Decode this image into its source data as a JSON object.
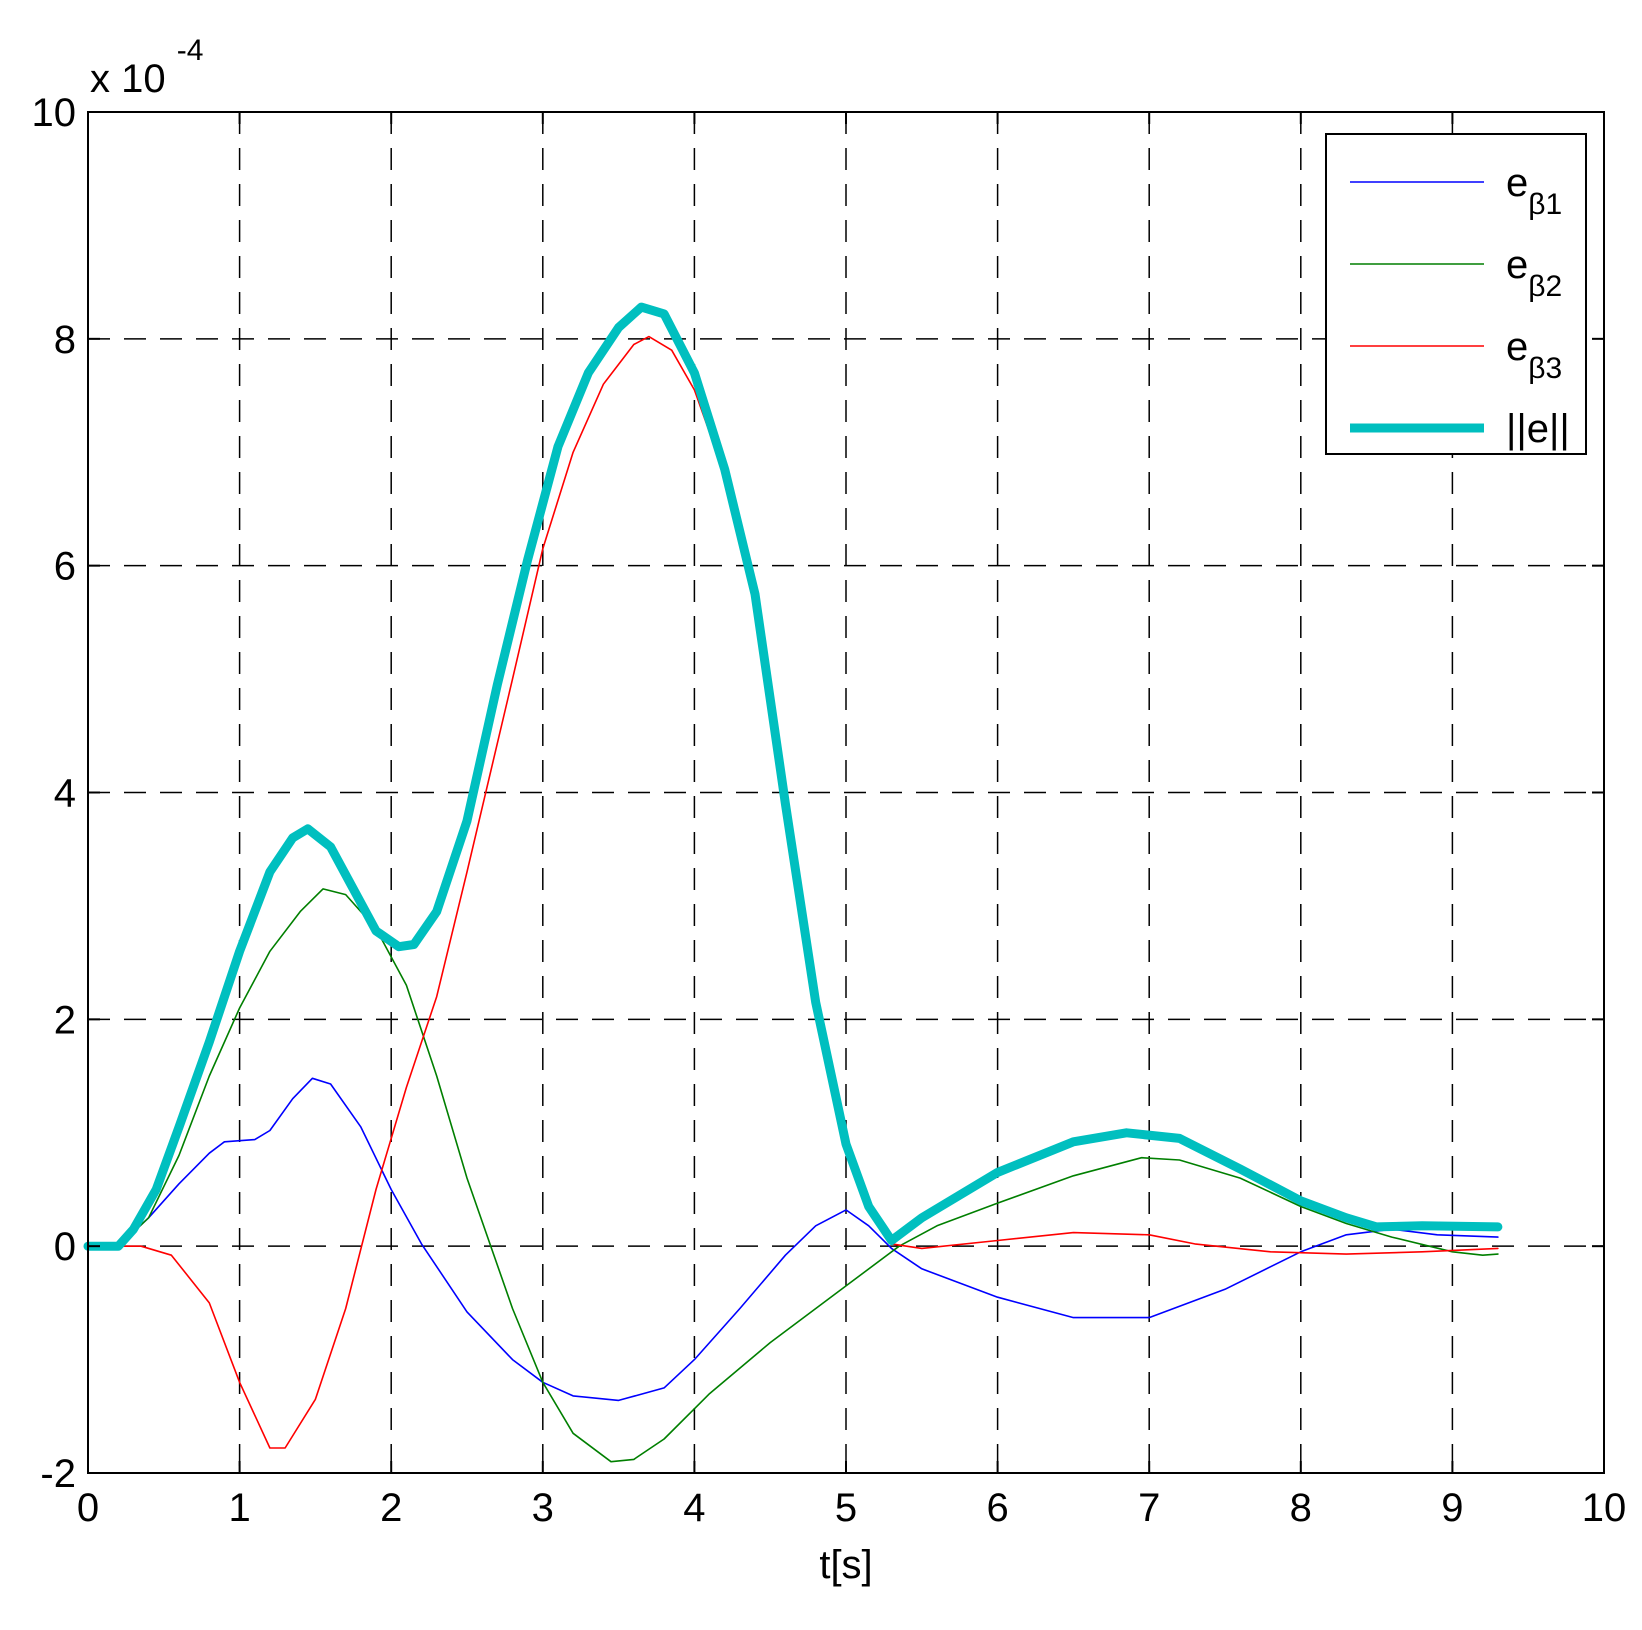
{
  "chart_data": {
    "type": "line",
    "xlabel": "t[s]",
    "ylabel": "",
    "y_multiplier": "x 10",
    "y_exponent": "-4",
    "xlim": [
      0,
      10
    ],
    "ylim": [
      -2,
      10
    ],
    "xticks": [
      "0",
      "1",
      "2",
      "3",
      "4",
      "5",
      "6",
      "7",
      "8",
      "9",
      "10"
    ],
    "yticks": [
      "-2",
      "0",
      "2",
      "4",
      "6",
      "8",
      "10"
    ],
    "grid": true,
    "legend_position": "top-right",
    "series": [
      {
        "name_main": "e",
        "name_sub": "β1",
        "color": "#0000ff",
        "points": [
          [
            0,
            0
          ],
          [
            0.2,
            0
          ],
          [
            0.4,
            0.25
          ],
          [
            0.6,
            0.55
          ],
          [
            0.8,
            0.82
          ],
          [
            0.9,
            0.92
          ],
          [
            1.1,
            0.94
          ],
          [
            1.2,
            1.02
          ],
          [
            1.35,
            1.3
          ],
          [
            1.48,
            1.48
          ],
          [
            1.6,
            1.43
          ],
          [
            1.8,
            1.05
          ],
          [
            2.0,
            0.5
          ],
          [
            2.2,
            0.02
          ],
          [
            2.5,
            -0.58
          ],
          [
            2.8,
            -1.0
          ],
          [
            3.0,
            -1.2
          ],
          [
            3.2,
            -1.32
          ],
          [
            3.5,
            -1.36
          ],
          [
            3.8,
            -1.25
          ],
          [
            4.0,
            -1.0
          ],
          [
            4.3,
            -0.55
          ],
          [
            4.6,
            -0.08
          ],
          [
            4.8,
            0.18
          ],
          [
            5.0,
            0.32
          ],
          [
            5.15,
            0.18
          ],
          [
            5.3,
            -0.02
          ],
          [
            5.5,
            -0.2
          ],
          [
            6.0,
            -0.45
          ],
          [
            6.5,
            -0.63
          ],
          [
            7.0,
            -0.63
          ],
          [
            7.5,
            -0.38
          ],
          [
            8.0,
            -0.05
          ],
          [
            8.3,
            0.1
          ],
          [
            8.6,
            0.15
          ],
          [
            8.9,
            0.1
          ],
          [
            9.3,
            0.08
          ]
        ]
      },
      {
        "name_main": "e",
        "name_sub": "β2",
        "color": "#007f00",
        "points": [
          [
            0,
            0
          ],
          [
            0.2,
            0
          ],
          [
            0.4,
            0.25
          ],
          [
            0.6,
            0.8
          ],
          [
            0.8,
            1.5
          ],
          [
            1.0,
            2.1
          ],
          [
            1.2,
            2.6
          ],
          [
            1.4,
            2.95
          ],
          [
            1.55,
            3.15
          ],
          [
            1.7,
            3.1
          ],
          [
            1.9,
            2.8
          ],
          [
            2.1,
            2.3
          ],
          [
            2.3,
            1.5
          ],
          [
            2.5,
            0.6
          ],
          [
            2.8,
            -0.55
          ],
          [
            3.0,
            -1.2
          ],
          [
            3.2,
            -1.65
          ],
          [
            3.45,
            -1.9
          ],
          [
            3.6,
            -1.88
          ],
          [
            3.8,
            -1.7
          ],
          [
            4.1,
            -1.3
          ],
          [
            4.5,
            -0.85
          ],
          [
            5.0,
            -0.35
          ],
          [
            5.35,
            0.0
          ],
          [
            5.6,
            0.18
          ],
          [
            6.0,
            0.38
          ],
          [
            6.5,
            0.62
          ],
          [
            6.95,
            0.78
          ],
          [
            7.2,
            0.76
          ],
          [
            7.6,
            0.6
          ],
          [
            8.0,
            0.35
          ],
          [
            8.3,
            0.2
          ],
          [
            8.6,
            0.08
          ],
          [
            9.0,
            -0.05
          ],
          [
            9.2,
            -0.08
          ],
          [
            9.3,
            -0.07
          ]
        ]
      },
      {
        "name_main": "e",
        "name_sub": "β3",
        "color": "#ff0000",
        "points": [
          [
            0,
            0
          ],
          [
            0.35,
            0
          ],
          [
            0.55,
            -0.08
          ],
          [
            0.8,
            -0.5
          ],
          [
            1.0,
            -1.2
          ],
          [
            1.2,
            -1.78
          ],
          [
            1.3,
            -1.78
          ],
          [
            1.5,
            -1.35
          ],
          [
            1.7,
            -0.55
          ],
          [
            1.9,
            0.5
          ],
          [
            2.1,
            1.4
          ],
          [
            2.3,
            2.2
          ],
          [
            2.5,
            3.3
          ],
          [
            2.8,
            5.0
          ],
          [
            3.0,
            6.15
          ],
          [
            3.2,
            7.0
          ],
          [
            3.4,
            7.6
          ],
          [
            3.6,
            7.95
          ],
          [
            3.7,
            8.02
          ],
          [
            3.85,
            7.9
          ],
          [
            4.0,
            7.55
          ],
          [
            4.2,
            6.8
          ],
          [
            4.4,
            5.7
          ],
          [
            4.6,
            3.9
          ],
          [
            4.8,
            2.1
          ],
          [
            5.0,
            0.9
          ],
          [
            5.15,
            0.35
          ],
          [
            5.3,
            0.02
          ],
          [
            5.5,
            -0.02
          ],
          [
            6.0,
            0.05
          ],
          [
            6.5,
            0.12
          ],
          [
            7.0,
            0.1
          ],
          [
            7.3,
            0.02
          ],
          [
            7.8,
            -0.05
          ],
          [
            8.3,
            -0.07
          ],
          [
            8.8,
            -0.05
          ],
          [
            9.3,
            -0.02
          ]
        ]
      },
      {
        "name_main": "||e||",
        "name_sub": "",
        "color": "#00bfbf",
        "thick": true,
        "points": [
          [
            0,
            0
          ],
          [
            0.2,
            0
          ],
          [
            0.3,
            0.15
          ],
          [
            0.45,
            0.5
          ],
          [
            0.6,
            1.05
          ],
          [
            0.8,
            1.8
          ],
          [
            1.0,
            2.6
          ],
          [
            1.2,
            3.3
          ],
          [
            1.35,
            3.6
          ],
          [
            1.45,
            3.68
          ],
          [
            1.6,
            3.52
          ],
          [
            1.75,
            3.15
          ],
          [
            1.9,
            2.78
          ],
          [
            2.05,
            2.64
          ],
          [
            2.15,
            2.66
          ],
          [
            2.3,
            2.95
          ],
          [
            2.5,
            3.75
          ],
          [
            2.7,
            4.95
          ],
          [
            2.9,
            6.05
          ],
          [
            3.1,
            7.05
          ],
          [
            3.3,
            7.7
          ],
          [
            3.5,
            8.1
          ],
          [
            3.65,
            8.28
          ],
          [
            3.8,
            8.22
          ],
          [
            4.0,
            7.7
          ],
          [
            4.2,
            6.85
          ],
          [
            4.4,
            5.75
          ],
          [
            4.6,
            3.9
          ],
          [
            4.8,
            2.15
          ],
          [
            5.0,
            0.9
          ],
          [
            5.15,
            0.35
          ],
          [
            5.3,
            0.05
          ],
          [
            5.5,
            0.25
          ],
          [
            6.0,
            0.65
          ],
          [
            6.5,
            0.92
          ],
          [
            6.85,
            1.0
          ],
          [
            7.2,
            0.95
          ],
          [
            7.6,
            0.68
          ],
          [
            8.0,
            0.4
          ],
          [
            8.3,
            0.25
          ],
          [
            8.5,
            0.17
          ],
          [
            8.8,
            0.18
          ],
          [
            9.3,
            0.17
          ]
        ]
      }
    ]
  }
}
